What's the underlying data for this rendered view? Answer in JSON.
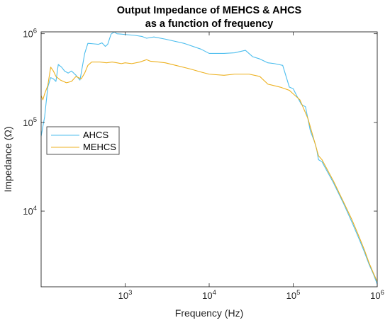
{
  "chart_data": {
    "type": "line",
    "title": "Output Impedance of MEHCS & AHCS",
    "subtitle": "as a function of frequency",
    "xlabel": "Frequency (Hz)",
    "ylabel": "Impedance (Ω)",
    "xscale": "log",
    "yscale": "log",
    "xlim": [
      100,
      1000000
    ],
    "ylim": [
      1400,
      1050000
    ],
    "x_ticks": [
      {
        "value": 1000,
        "base": "10",
        "exp": "3"
      },
      {
        "value": 10000,
        "base": "10",
        "exp": "4"
      },
      {
        "value": 100000,
        "base": "10",
        "exp": "5"
      },
      {
        "value": 1000000,
        "base": "10",
        "exp": "6"
      }
    ],
    "y_ticks": [
      {
        "value": 10000,
        "base": "10",
        "exp": "4"
      },
      {
        "value": 100000,
        "base": "10",
        "exp": "5"
      },
      {
        "value": 1000000,
        "base": "10",
        "exp": "6"
      }
    ],
    "grid": true,
    "minor_grid": true,
    "legend_position": "middle-left",
    "series": [
      {
        "name": "AHCS",
        "color": "#4dbeee",
        "points": [
          [
            100,
            70000
          ],
          [
            110,
            115000
          ],
          [
            120,
            250000
          ],
          [
            130,
            320000
          ],
          [
            140,
            310000
          ],
          [
            150,
            290000
          ],
          [
            160,
            450000
          ],
          [
            175,
            420000
          ],
          [
            190,
            380000
          ],
          [
            210,
            360000
          ],
          [
            230,
            380000
          ],
          [
            260,
            340000
          ],
          [
            290,
            300000
          ],
          [
            330,
            600000
          ],
          [
            360,
            780000
          ],
          [
            420,
            770000
          ],
          [
            480,
            760000
          ],
          [
            530,
            790000
          ],
          [
            580,
            720000
          ],
          [
            620,
            760000
          ],
          [
            680,
            990000
          ],
          [
            740,
            1050000
          ],
          [
            800,
            1000000
          ],
          [
            900,
            990000
          ],
          [
            1000,
            980000
          ],
          [
            1300,
            960000
          ],
          [
            1600,
            930000
          ],
          [
            1800,
            890000
          ],
          [
            2200,
            920000
          ],
          [
            3000,
            870000
          ],
          [
            5000,
            780000
          ],
          [
            8000,
            670000
          ],
          [
            10000,
            600000
          ],
          [
            15000,
            600000
          ],
          [
            20000,
            610000
          ],
          [
            27000,
            650000
          ],
          [
            33000,
            550000
          ],
          [
            40000,
            520000
          ],
          [
            50000,
            470000
          ],
          [
            60000,
            460000
          ],
          [
            75000,
            440000
          ],
          [
            90000,
            250000
          ],
          [
            100000,
            240000
          ],
          [
            110000,
            200000
          ],
          [
            125000,
            160000
          ],
          [
            140000,
            150000
          ],
          [
            160000,
            80000
          ],
          [
            180000,
            60000
          ],
          [
            190000,
            50000
          ],
          [
            200000,
            38000
          ],
          [
            220000,
            36000
          ],
          [
            300000,
            21000
          ],
          [
            400000,
            12000
          ],
          [
            500000,
            7500
          ],
          [
            600000,
            5000
          ],
          [
            700000,
            3500
          ],
          [
            800000,
            2500
          ],
          [
            900000,
            1950
          ],
          [
            1000000,
            1500
          ]
        ]
      },
      {
        "name": "MEHCS",
        "color": "#edb120",
        "points": [
          [
            100,
            200000
          ],
          [
            105,
            180000
          ],
          [
            110,
            210000
          ],
          [
            120,
            260000
          ],
          [
            130,
            420000
          ],
          [
            140,
            380000
          ],
          [
            150,
            330000
          ],
          [
            170,
            300000
          ],
          [
            200,
            280000
          ],
          [
            230,
            290000
          ],
          [
            260,
            330000
          ],
          [
            300,
            310000
          ],
          [
            330,
            360000
          ],
          [
            360,
            440000
          ],
          [
            400,
            480000
          ],
          [
            500,
            480000
          ],
          [
            600,
            470000
          ],
          [
            700,
            480000
          ],
          [
            800,
            470000
          ],
          [
            900,
            460000
          ],
          [
            1000,
            470000
          ],
          [
            1200,
            460000
          ],
          [
            1500,
            480000
          ],
          [
            1800,
            510000
          ],
          [
            2000,
            490000
          ],
          [
            2500,
            480000
          ],
          [
            3000,
            470000
          ],
          [
            4000,
            440000
          ],
          [
            6000,
            400000
          ],
          [
            8000,
            370000
          ],
          [
            10000,
            350000
          ],
          [
            15000,
            340000
          ],
          [
            20000,
            350000
          ],
          [
            30000,
            350000
          ],
          [
            40000,
            330000
          ],
          [
            50000,
            270000
          ],
          [
            70000,
            250000
          ],
          [
            90000,
            230000
          ],
          [
            100000,
            210000
          ],
          [
            120000,
            180000
          ],
          [
            150000,
            110000
          ],
          [
            180000,
            60000
          ],
          [
            200000,
            42000
          ],
          [
            220000,
            38000
          ],
          [
            300000,
            22000
          ],
          [
            400000,
            12500
          ],
          [
            500000,
            8000
          ],
          [
            600000,
            5300
          ],
          [
            700000,
            3700
          ],
          [
            800000,
            2600
          ],
          [
            900000,
            2000
          ],
          [
            1000000,
            1600
          ]
        ]
      }
    ]
  }
}
